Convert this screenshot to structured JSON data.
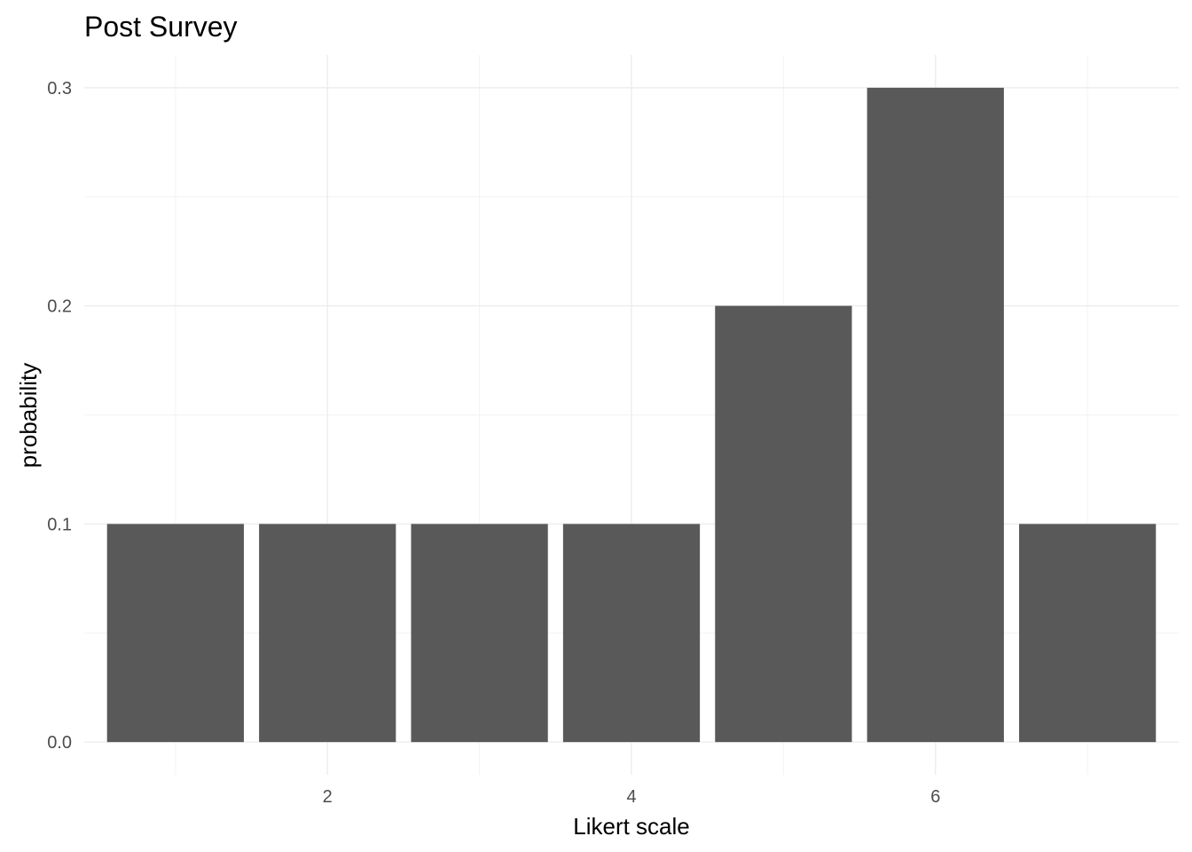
{
  "chart_data": {
    "type": "bar",
    "title": "Post Survey",
    "xlabel": "Likert scale",
    "ylabel": "probability",
    "x": [
      1,
      2,
      3,
      4,
      5,
      6,
      7
    ],
    "values": [
      0.1,
      0.1,
      0.1,
      0.1,
      0.2,
      0.3,
      0.1
    ],
    "xticks": [
      2,
      4,
      6
    ],
    "xtick_labels": [
      "2",
      "4",
      "6"
    ],
    "yticks": [
      0.0,
      0.1,
      0.2,
      0.3
    ],
    "ytick_labels": [
      "0.0",
      "0.1",
      "0.2",
      "0.3"
    ],
    "xlim": [
      0.4,
      7.6
    ],
    "ylim": [
      -0.015,
      0.315
    ],
    "grid": true,
    "bar_color": "#595959",
    "grid_color": "#ebebeb"
  }
}
